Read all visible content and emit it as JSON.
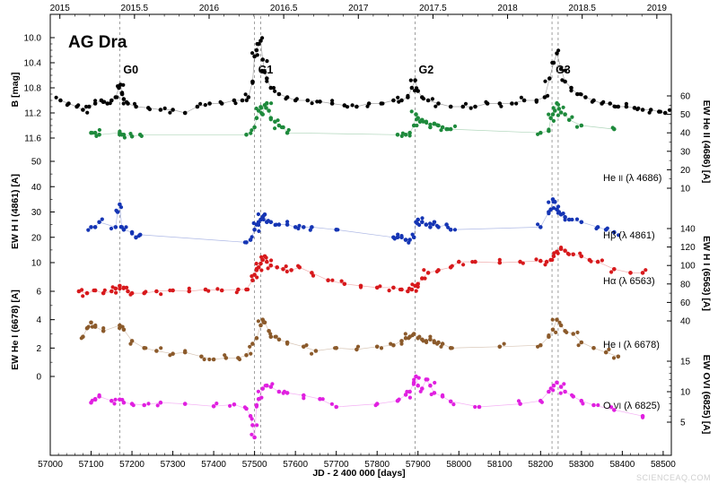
{
  "chart_data": {
    "type": "scatter",
    "title": "AG Dra",
    "xlabel": "JD - 2 400 000 [days]",
    "xlim": [
      57000,
      58520
    ],
    "x_ticks": [
      "57000",
      "57100",
      "57200",
      "57300",
      "57400",
      "57500",
      "57600",
      "57700",
      "57800",
      "57900",
      "58000",
      "58100",
      "58200",
      "58300",
      "58400",
      "58500"
    ],
    "x_top_ticks": [
      "2015",
      "2015.5",
      "2016",
      "2016.5",
      "2017",
      "2017.5",
      "2018",
      "2018.5",
      "2019"
    ],
    "events": [
      {
        "label": "G0",
        "x": 57170
      },
      {
        "label": "G1",
        "x": 57500
      },
      {
        "label": "",
        "x": 57515
      },
      {
        "label": "G2",
        "x": 57893
      },
      {
        "label": "G3",
        "x": 58228
      },
      {
        "label": "",
        "x": 58243
      }
    ],
    "axes": [
      {
        "id": "B",
        "label": "B [mag]",
        "side": "left",
        "ticks": [
          "10.0",
          "10.4",
          "10.8",
          "11.2",
          "11.6"
        ],
        "inverted": true
      },
      {
        "id": "HeII",
        "label": "EW He II (4686) [A]",
        "side": "right",
        "ticks": [
          "10",
          "20",
          "30",
          "40",
          "50",
          "60"
        ]
      },
      {
        "id": "Hb",
        "label": "EW H I (4861) [A]",
        "side": "left",
        "ticks": [
          "10",
          "20",
          "30",
          "40",
          "50"
        ]
      },
      {
        "id": "Ha",
        "label": "EW H I (6563) [A]",
        "side": "right",
        "ticks": [
          "40",
          "60",
          "80",
          "100",
          "120",
          "140"
        ]
      },
      {
        "id": "HeI",
        "label": "EW He I (6678) [A]",
        "side": "left",
        "ticks": [
          "0",
          "2",
          "4",
          "6"
        ]
      },
      {
        "id": "OVI",
        "label": "EW OVI (6825) [A]",
        "side": "right",
        "ticks": [
          "5",
          "10",
          "15"
        ]
      }
    ],
    "series": [
      {
        "id": "B",
        "color": "#000000",
        "labels": [],
        "x": [
          57025,
          57045,
          57065,
          57080,
          57095,
          57110,
          57125,
          57140,
          57150,
          57160,
          57168,
          57172,
          57176,
          57180,
          57190,
          57210,
          57240,
          57270,
          57300,
          57330,
          57360,
          57390,
          57420,
          57450,
          57470,
          57485,
          57495,
          57500,
          57505,
          57510,
          57515,
          57520,
          57525,
          57530,
          57540,
          57560,
          57580,
          57600,
          57630,
          57660,
          57690,
          57720,
          57750,
          57780,
          57810,
          57840,
          57860,
          57875,
          57885,
          57893,
          57900,
          57910,
          57925,
          57950,
          57980,
          58010,
          58040,
          58070,
          58100,
          58130,
          58160,
          58190,
          58210,
          58222,
          58232,
          58240,
          58250,
          58260,
          58275,
          58290,
          58310,
          58330,
          58350,
          58370,
          58390,
          58410,
          58430,
          58450,
          58470,
          58490,
          58505
        ],
        "y": [
          11.0,
          11.05,
          11.1,
          11.15,
          11.1,
          11.05,
          11.0,
          11.05,
          11.0,
          10.95,
          10.8,
          10.75,
          10.9,
          10.98,
          11.05,
          11.1,
          11.12,
          11.15,
          11.15,
          11.2,
          11.1,
          11.05,
          11.05,
          11.0,
          11.0,
          10.95,
          10.7,
          10.3,
          10.2,
          10.1,
          10.05,
          10.35,
          10.55,
          10.65,
          10.8,
          10.9,
          10.95,
          11.0,
          11.0,
          11.02,
          11.05,
          11.08,
          11.1,
          11.05,
          11.05,
          11.0,
          11.0,
          10.95,
          10.8,
          10.68,
          10.85,
          10.95,
          11.0,
          11.05,
          11.1,
          11.1,
          11.1,
          11.05,
          11.05,
          11.05,
          11.0,
          11.0,
          10.95,
          10.65,
          10.4,
          10.25,
          10.5,
          10.7,
          10.8,
          10.9,
          10.95,
          11.0,
          11.05,
          11.05,
          11.1,
          11.1,
          11.12,
          11.15,
          11.15,
          11.18,
          11.2
        ]
      },
      {
        "id": "HeII",
        "color": "#1e8a3c",
        "labels": [
          "He",
          "II",
          "(λ 4686)"
        ],
        "x": [
          57100,
          57110,
          57120,
          57170,
          57175,
          57180,
          57200,
          57220,
          57480,
          57500,
          57505,
          57510,
          57515,
          57520,
          57525,
          57530,
          57535,
          57540,
          57550,
          57560,
          57570,
          57580,
          57850,
          57870,
          57880,
          57890,
          57895,
          57900,
          57905,
          57910,
          57920,
          57930,
          57940,
          57950,
          57960,
          57970,
          57980,
          58200,
          58220,
          58225,
          58230,
          58235,
          58240,
          58245,
          58250,
          58260,
          58270,
          58300,
          58380
        ],
        "y": [
          40,
          40,
          39,
          40,
          39,
          39,
          38,
          39,
          39,
          43,
          48,
          52,
          54,
          50,
          55,
          56,
          52,
          48,
          46,
          44,
          43,
          40,
          39,
          39,
          40,
          44,
          50,
          48,
          46,
          47,
          46,
          43,
          45,
          44,
          43,
          42,
          42,
          40,
          41,
          48,
          50,
          52,
          56,
          53,
          51,
          50,
          47,
          44,
          42
        ]
      },
      {
        "id": "Hb",
        "color": "#1535b4",
        "labels": [
          "Hβ",
          "(λ 4861)"
        ],
        "x": [
          57100,
          57110,
          57120,
          57160,
          57165,
          57170,
          57175,
          57180,
          57200,
          57210,
          57220,
          57480,
          57490,
          57500,
          57505,
          57510,
          57515,
          57520,
          57525,
          57530,
          57540,
          57560,
          57580,
          57600,
          57620,
          57640,
          57700,
          57840,
          57850,
          57860,
          57870,
          57880,
          57890,
          57895,
          57900,
          57910,
          57920,
          57930,
          57940,
          57950,
          57970,
          57980,
          58200,
          58220,
          58225,
          58230,
          58235,
          58240,
          58245,
          58250,
          58260,
          58270,
          58300,
          58340,
          58360,
          58380
        ],
        "y": [
          24,
          24,
          26,
          24,
          30,
          33,
          24,
          23,
          22,
          20,
          21,
          18,
          19,
          23,
          25,
          26,
          27,
          28,
          29,
          26,
          26,
          25,
          25,
          24,
          24,
          24,
          23,
          20,
          20,
          20,
          19,
          19,
          20,
          26,
          27,
          26,
          25,
          24,
          26,
          24,
          25,
          23,
          24,
          30,
          31,
          35,
          34,
          31,
          30,
          29,
          28,
          27,
          26,
          24,
          23,
          22
        ]
      },
      {
        "id": "Ha",
        "color": "#d7191c",
        "labels": [
          "Hα",
          "(λ 6563)"
        ],
        "x": [
          57070,
          57090,
          57110,
          57130,
          57150,
          57160,
          57170,
          57180,
          57190,
          57200,
          57230,
          57260,
          57300,
          57340,
          57380,
          57420,
          57460,
          57480,
          57495,
          57500,
          57505,
          57510,
          57515,
          57520,
          57525,
          57530,
          57540,
          57555,
          57570,
          57590,
          57610,
          57640,
          57680,
          57720,
          57760,
          57800,
          57840,
          57860,
          57875,
          57885,
          57893,
          57900,
          57910,
          57925,
          57950,
          57980,
          58000,
          58040,
          58100,
          58150,
          58200,
          58215,
          58225,
          58232,
          58240,
          58250,
          58260,
          58280,
          58300,
          58320,
          58340,
          58380,
          58420,
          58450
        ],
        "y": [
          72,
          70,
          73,
          70,
          72,
          75,
          78,
          76,
          72,
          70,
          70,
          72,
          73,
          72,
          74,
          73,
          74,
          74,
          84,
          90,
          95,
          98,
          102,
          106,
          110,
          104,
          100,
          98,
          96,
          95,
          98,
          92,
          84,
          80,
          78,
          76,
          76,
          74,
          72,
          74,
          78,
          80,
          86,
          92,
          95,
          98,
          104,
          104,
          103,
          104,
          105,
          104,
          106,
          110,
          115,
          118,
          116,
          112,
          110,
          106,
          104,
          96,
          92,
          92
        ]
      },
      {
        "id": "HeI",
        "color": "#8b5a2b",
        "labels": [
          "He",
          "I",
          "(λ 6678)"
        ],
        "x": [
          57080,
          57090,
          57100,
          57110,
          57130,
          57170,
          57180,
          57200,
          57230,
          57260,
          57300,
          57330,
          57370,
          57400,
          57430,
          57460,
          57480,
          57495,
          57505,
          57515,
          57520,
          57525,
          57535,
          57540,
          57560,
          57580,
          57620,
          57650,
          57700,
          57750,
          57800,
          57840,
          57860,
          57870,
          57880,
          57890,
          57900,
          57910,
          57920,
          57930,
          57940,
          57950,
          57960,
          57980,
          58100,
          58200,
          58220,
          58230,
          58240,
          58250,
          58260,
          58280,
          58300,
          58330,
          58360,
          58390
        ],
        "y": [
          2.8,
          3.4,
          3.8,
          3.5,
          3.2,
          3.6,
          3.3,
          2.5,
          2.0,
          1.8,
          1.6,
          1.7,
          1.4,
          1.2,
          1.3,
          1.3,
          1.5,
          2.3,
          2.7,
          3.6,
          4.0,
          3.8,
          3.2,
          2.8,
          2.6,
          2.4,
          2.1,
          1.8,
          2.0,
          1.9,
          2.1,
          2.2,
          2.5,
          2.7,
          2.8,
          3.0,
          2.7,
          2.6,
          2.5,
          2.6,
          2.4,
          2.4,
          2.3,
          2.0,
          2.1,
          2.2,
          2.8,
          3.3,
          4.0,
          3.6,
          3.2,
          3.0,
          2.4,
          2.0,
          1.7,
          1.4
        ]
      },
      {
        "id": "OVI",
        "color": "#e020e0",
        "labels": [
          "O",
          "VI",
          "(λ 6825)"
        ],
        "x": [
          57100,
          57110,
          57120,
          57150,
          57170,
          57180,
          57200,
          57230,
          57270,
          57330,
          57400,
          57450,
          57480,
          57490,
          57495,
          57500,
          57505,
          57510,
          57520,
          57530,
          57540,
          57560,
          57580,
          57620,
          57660,
          57700,
          57800,
          57850,
          57870,
          57880,
          57890,
          57895,
          57900,
          57910,
          57920,
          57930,
          57940,
          57960,
          57980,
          58050,
          58150,
          58200,
          58220,
          58232,
          58240,
          58250,
          58260,
          58280,
          58300,
          58330,
          58380,
          58450
        ],
        "y": [
          8.2,
          8.8,
          9.2,
          8.5,
          8.7,
          8.2,
          8.0,
          7.8,
          8.2,
          8.0,
          7.6,
          7.9,
          7.2,
          6.0,
          4.5,
          2.5,
          7.8,
          8.8,
          10.5,
          11.0,
          10.8,
          10.0,
          9.8,
          9.4,
          8.8,
          7.5,
          8.0,
          8.5,
          9.5,
          10.0,
          11.5,
          12.5,
          11.0,
          10.5,
          12.0,
          11.0,
          9.8,
          9.2,
          8.4,
          7.5,
          8.0,
          8.5,
          10.0,
          11.0,
          11.5,
          10.8,
          10.0,
          9.2,
          8.5,
          7.8,
          7.0,
          6.0
        ]
      }
    ]
  },
  "watermark": "SCIENCEAQ.COM"
}
